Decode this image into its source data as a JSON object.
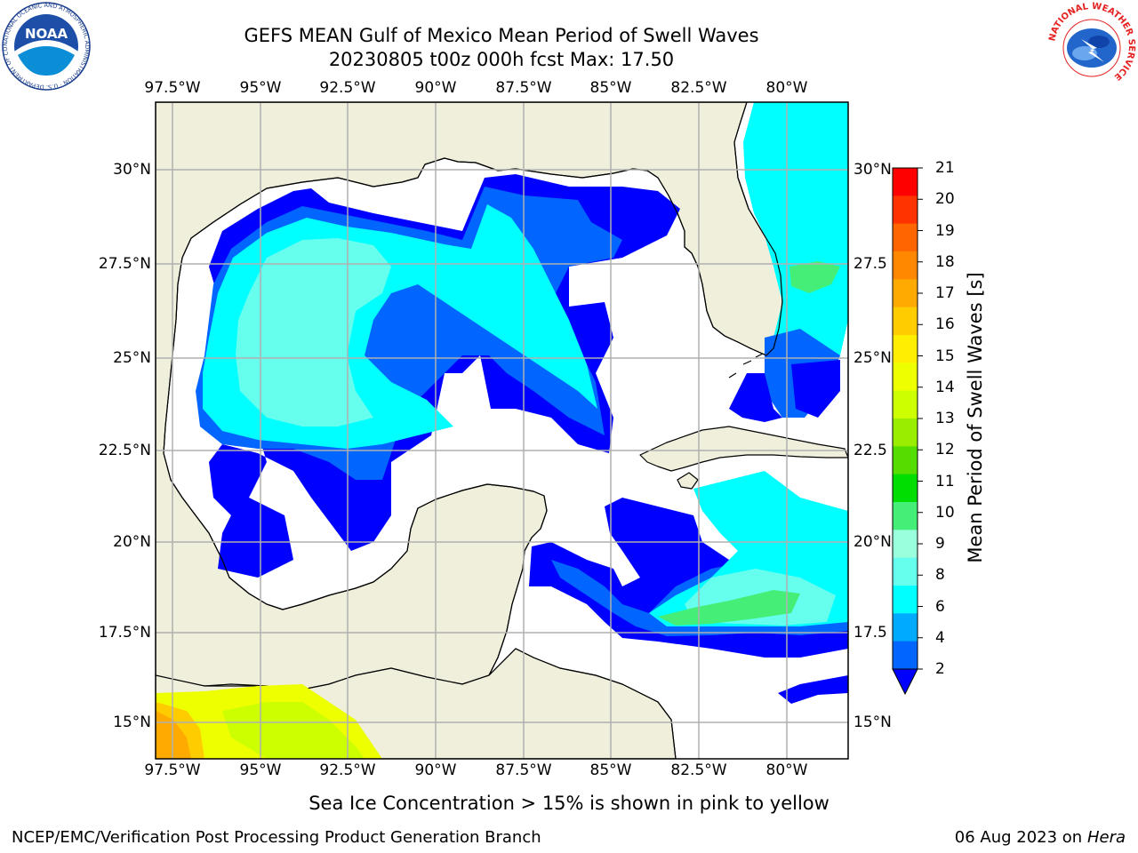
{
  "title": {
    "line1": "GEFS MEAN Gulf of Mexico Mean Period of Swell Waves",
    "line2": "20230805 t00z 000h fcst   Max: 17.50"
  },
  "map": {
    "lon_ticks": [
      "97.5°W",
      "95°W",
      "92.5°W",
      "90°W",
      "87.5°W",
      "85°W",
      "82.5°W",
      "80°W"
    ],
    "lat_ticks_left": [
      "30°N",
      "27.5°N",
      "25°N",
      "22.5°N",
      "20°N",
      "17.5°N",
      "15°N"
    ],
    "lat_ticks_right": [
      "30°N",
      "27.5",
      "25°N",
      "22.5",
      "20°N",
      "17.5",
      "15°N"
    ],
    "lon_range": [
      -98,
      -78.2
    ],
    "lat_range": [
      14,
      31.6
    ],
    "land_color": "#efefdc",
    "ocean_color": "#ffffff"
  },
  "colorbar": {
    "label": "Mean Period of Swell Waves [s]",
    "ticks": [
      "21",
      "20",
      "19",
      "18",
      "17",
      "16",
      "15",
      "14",
      "13",
      "12",
      "11",
      "10",
      "9",
      "8",
      "6",
      "4",
      "2"
    ],
    "colors": [
      "#ff0000",
      "#ff3300",
      "#ff6600",
      "#ff8800",
      "#ffaa00",
      "#ffcc00",
      "#ffee00",
      "#eeff00",
      "#ccff00",
      "#99ee00",
      "#55dd00",
      "#00dd00",
      "#44ee77",
      "#99ffdd",
      "#66ffee",
      "#00ffff",
      "#00aaff",
      "#0066ff"
    ],
    "extend_color": "#0000ff"
  },
  "footnote": "Sea Ice Concentration > 15% is shown in pink to yellow",
  "credit": "NCEP/EMC/Verification Post Processing Product Generation Branch",
  "date": {
    "text": "06 Aug 2023 on",
    "host": "Hera"
  },
  "logos": {
    "noaa": {
      "text": "NOAA",
      "ring": "NATIONAL OCEANIC AND ATMOSPHERIC ADMINISTRATION · U.S. DEPARTMENT OF COMMERCE"
    },
    "nws": {
      "ring": "NATIONAL WEATHER SERVICE"
    }
  }
}
